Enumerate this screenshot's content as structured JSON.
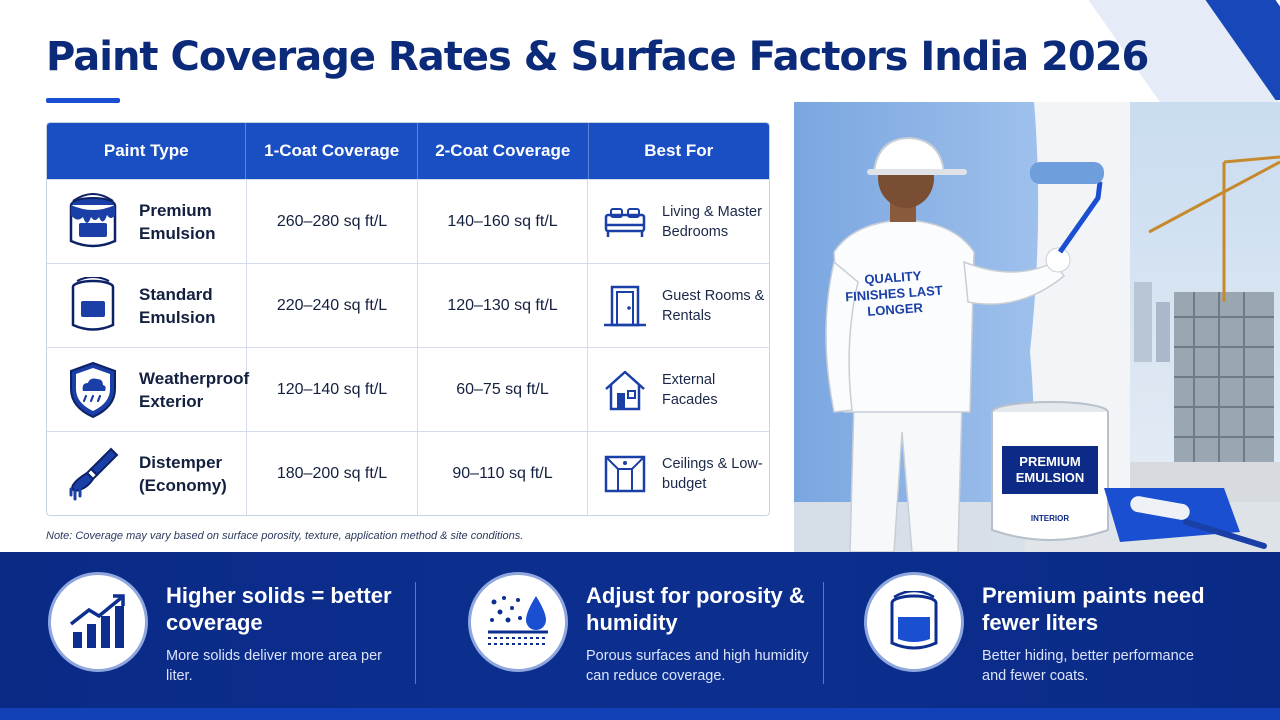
{
  "title": "Paint Coverage Rates & Surface Factors India 2026",
  "table": {
    "headers": [
      "Paint Type",
      "1-Coat Coverage",
      "2-Coat Coverage",
      "Best For"
    ],
    "rows": [
      {
        "type": "Premium Emulsion",
        "type_icon": "paint-can-drip-icon",
        "coat1": "260–280 sq ft/L",
        "coat2": "140–160 sq ft/L",
        "best_for": "Living & Master Bedrooms",
        "best_icon": "bed-icon"
      },
      {
        "type": "Standard Emulsion",
        "type_icon": "paint-bucket-icon",
        "coat1": "220–240 sq ft/L",
        "coat2": "120–130 sq ft/L",
        "best_for": "Guest Rooms & Rentals",
        "best_icon": "door-icon"
      },
      {
        "type": "Weatherproof Exterior",
        "type_icon": "shield-cloud-rain-icon",
        "coat1": "120–140 sq ft/L",
        "coat2": "60–75 sq ft/L",
        "best_for": "External Facades",
        "best_icon": "house-icon"
      },
      {
        "type": "Distemper (Economy)",
        "type_icon": "paint-brush-icon",
        "coat1": "180–200 sq ft/L",
        "coat2": "90–110 sq ft/L",
        "best_for": "Ceilings & Low-budget",
        "best_icon": "ceiling-icon"
      }
    ]
  },
  "note": "Note: Coverage may vary based on surface porosity, texture, application method & site conditions.",
  "photo": {
    "shirt_text": "QUALITY FINISHES LAST LONGER",
    "bucket_label": "PREMIUM EMULSION",
    "bucket_sub": "INTERIOR"
  },
  "features": [
    {
      "icon": "growth-chart-icon",
      "title": "Higher solids = better coverage",
      "desc": "More solids deliver more area per liter."
    },
    {
      "icon": "porous-surface-droplet-icon",
      "title": "Adjust for porosity & humidity",
      "desc": "Porous surfaces and high humidity can reduce coverage."
    },
    {
      "icon": "paint-can-icon",
      "title": "Premium paints need fewer liters",
      "desc": "Better hiding, better performance and fewer coats."
    }
  ],
  "colors": {
    "brand_blue": "#1a4fc4",
    "navy": "#0b2a7a",
    "band": "#0a2a86"
  }
}
